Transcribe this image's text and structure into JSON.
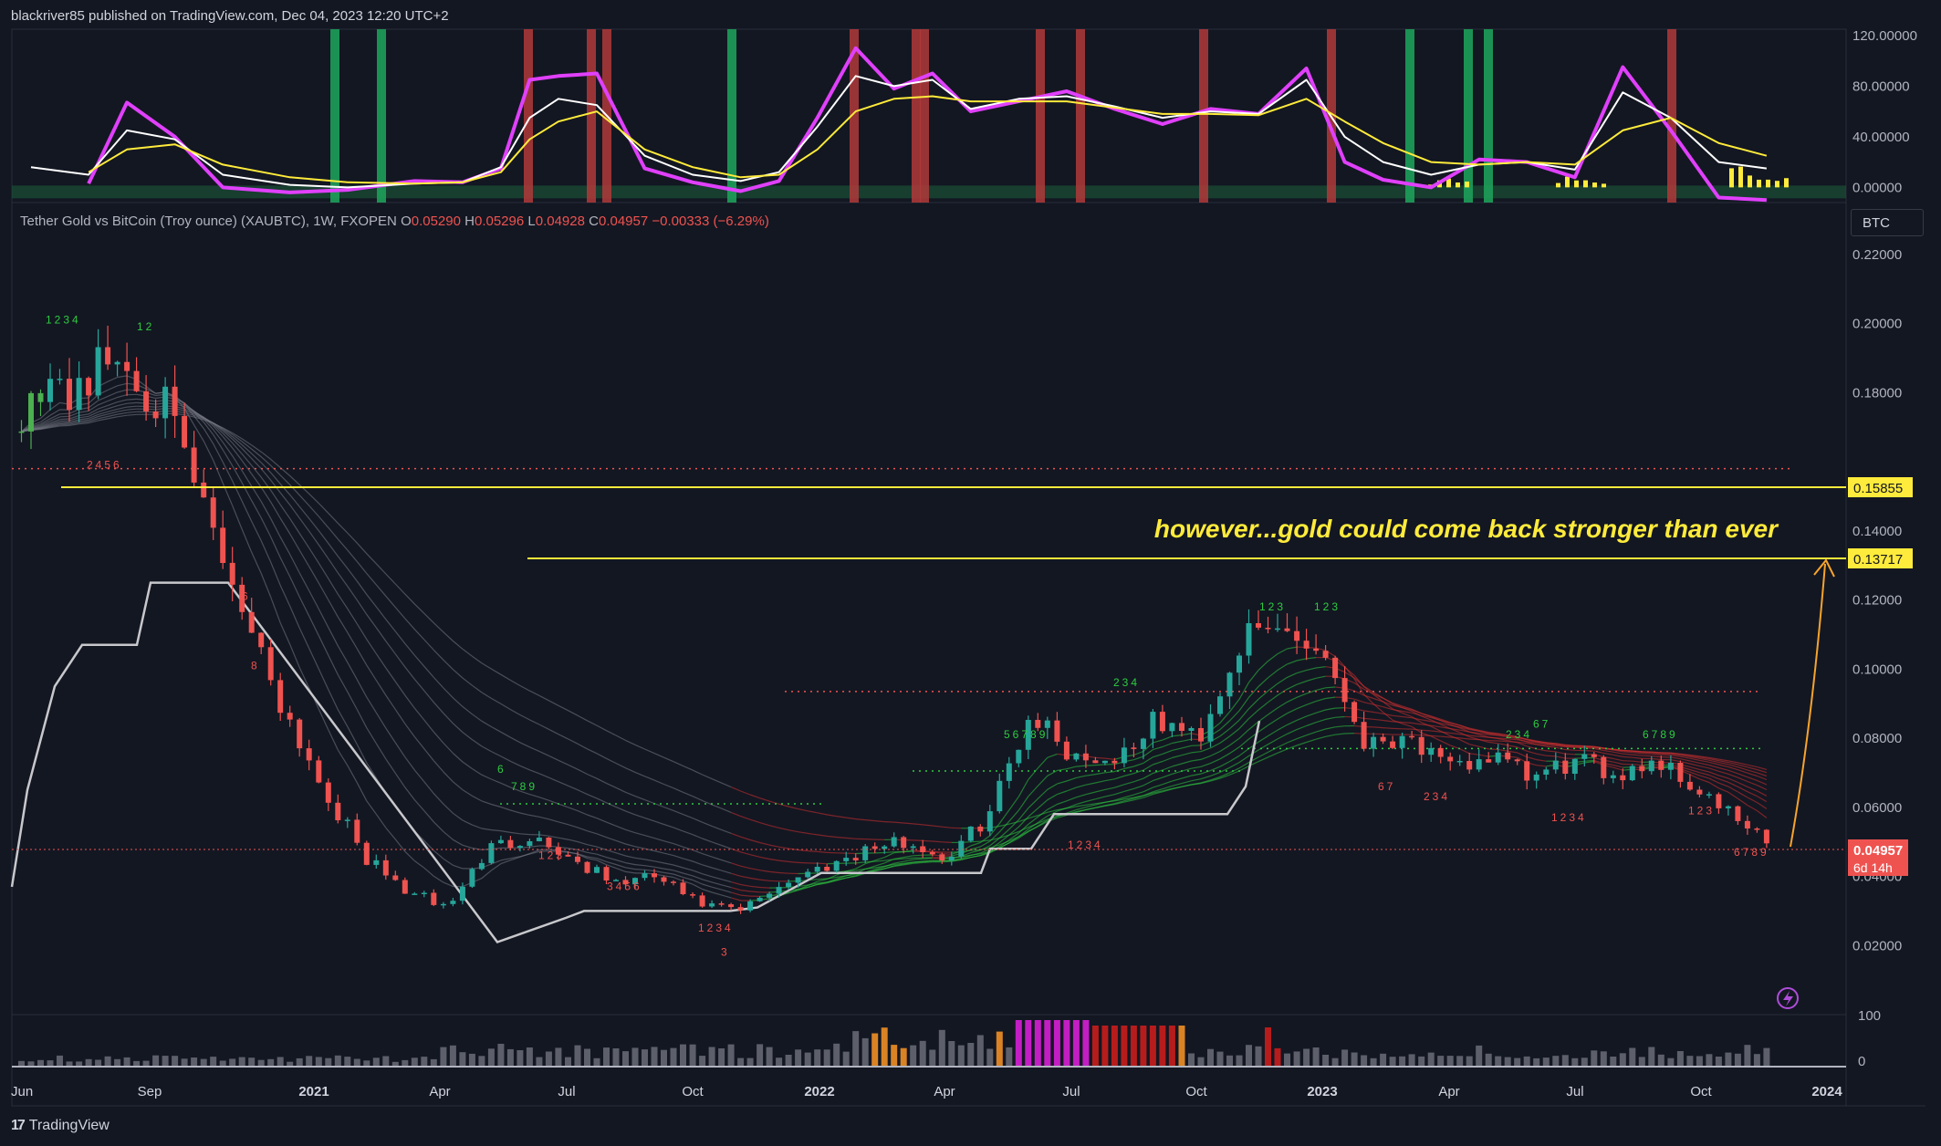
{
  "header": {
    "published_by": "blackriver85 published on TradingView.com, Dec 04, 2023 12:20 UTC+2"
  },
  "legend": {
    "symbol": "Tether Gold vs BitCoin (Troy ounce) (XAUBTC), 1W, FXOPEN",
    "o_label": "O",
    "o": "0.05290",
    "h_label": "H",
    "h": "0.05296",
    "l_label": "L",
    "l": "0.04928",
    "c_label": "C",
    "c": "0.04957",
    "change": "−0.00333 (−6.29%)"
  },
  "currency": "BTC",
  "annotation": "however...gold could come back stronger than ever",
  "price_labels": {
    "level_high": "0.15855",
    "level_low": "0.13717",
    "last_price": "0.04957",
    "countdown": "6d 14h"
  },
  "footer": {
    "logo_mark": "17",
    "logo_text": "TradingView"
  },
  "colors": {
    "background": "#131722",
    "up": "#26a69a",
    "down": "#ef5350",
    "oscillator_fast": "#e040fb",
    "oscillator_white": "#ffffff",
    "oscillator_yellow": "#ffeb3b",
    "level_line": "#ffeb3b",
    "arrow": "#f7a42c"
  },
  "chart_data": [
    {
      "type": "line",
      "title": "",
      "panel": "oscillator",
      "y_ticks": [
        "120.00000",
        "80.00000",
        "40.00000",
        "0.00000"
      ],
      "ylim": [
        -12,
        125
      ],
      "x": [
        "2020-06-15",
        "2020-07-27",
        "2020-08-24",
        "2020-09-28",
        "2020-11-02",
        "2020-12-21",
        "2021-02-01",
        "2021-03-22",
        "2021-04-26",
        "2021-05-24",
        "2021-06-14",
        "2021-07-05",
        "2021-08-02",
        "2021-09-06",
        "2021-10-11",
        "2021-11-15",
        "2021-12-13",
        "2022-01-10",
        "2022-02-07",
        "2022-03-07",
        "2022-04-04",
        "2022-05-02",
        "2022-06-06",
        "2022-07-11",
        "2022-08-15",
        "2022-09-19",
        "2022-10-24",
        "2022-11-28",
        "2023-01-02",
        "2023-01-30",
        "2023-02-27",
        "2023-04-03",
        "2023-05-08",
        "2023-06-12",
        "2023-07-17",
        "2023-08-21",
        "2023-09-25",
        "2023-10-30",
        "2023-12-04"
      ],
      "series": [
        {
          "values": [
            null,
            3,
            67,
            40,
            0,
            -4,
            -2,
            5,
            4,
            15,
            85,
            88,
            90,
            15,
            4,
            -3,
            5,
            55,
            110,
            78,
            90,
            60,
            68,
            76,
            62,
            50,
            62,
            58,
            94,
            20,
            6,
            0,
            22,
            20,
            8,
            95,
            45,
            -8,
            -10
          ]
        },
        {
          "values": [
            16,
            10,
            45,
            38,
            10,
            2,
            0,
            3,
            4,
            16,
            55,
            70,
            65,
            25,
            10,
            5,
            12,
            48,
            88,
            80,
            85,
            62,
            70,
            72,
            64,
            55,
            60,
            58,
            85,
            40,
            20,
            10,
            18,
            20,
            14,
            75,
            55,
            20,
            15
          ]
        },
        {
          "values": [
            null,
            12,
            30,
            34,
            18,
            8,
            4,
            3,
            4,
            12,
            38,
            52,
            60,
            30,
            16,
            8,
            10,
            30,
            60,
            70,
            72,
            68,
            68,
            68,
            63,
            58,
            58,
            57,
            70,
            52,
            35,
            20,
            18,
            20,
            18,
            45,
            55,
            35,
            25
          ]
        }
      ],
      "histogram_note": "yellow bars near zero",
      "signal_bands": {
        "green_count": 7,
        "red_count": 10
      }
    },
    {
      "type": "line",
      "title": "",
      "panel": "price",
      "subtype": "candlestick",
      "y_ticks": [
        "0.22000",
        "0.20000",
        "0.18000",
        "0.14000",
        "0.12000",
        "0.10000",
        "0.08000",
        "0.06000",
        "0.04000",
        "0.02000"
      ],
      "ylim": [
        0.0,
        0.235
      ],
      "x_ticks": [
        "Jun",
        "Sep",
        "2021",
        "Apr",
        "Jul",
        "Oct",
        "2022",
        "Apr",
        "Jul",
        "Oct",
        "2023",
        "Apr",
        "Jul",
        "Oct",
        "2024"
      ],
      "x": [
        "2020-06",
        "2020-08",
        "2020-09",
        "2020-10",
        "2020-11",
        "2020-12",
        "2021-01",
        "2021-02",
        "2021-03",
        "2021-04",
        "2021-05",
        "2021-06",
        "2021-07",
        "2021-08",
        "2021-09",
        "2021-10",
        "2021-11",
        "2021-12",
        "2022-01",
        "2022-02",
        "2022-03",
        "2022-04",
        "2022-05",
        "2022-06",
        "2022-07",
        "2022-08",
        "2022-09",
        "2022-10",
        "2022-11",
        "2022-12",
        "2023-01",
        "2023-02",
        "2023-03",
        "2023-04",
        "2023-05",
        "2023-06",
        "2023-07",
        "2023-08",
        "2023-09",
        "2023-10",
        "2023-11",
        "2023-12"
      ],
      "values": [
        0.175,
        0.19,
        0.18,
        0.15,
        0.12,
        0.09,
        0.065,
        0.045,
        0.036,
        0.031,
        0.048,
        0.052,
        0.045,
        0.038,
        0.04,
        0.032,
        0.03,
        0.038,
        0.043,
        0.048,
        0.05,
        0.045,
        0.058,
        0.088,
        0.075,
        0.074,
        0.085,
        0.08,
        0.108,
        0.112,
        0.105,
        0.078,
        0.082,
        0.07,
        0.075,
        0.068,
        0.073,
        0.07,
        0.074,
        0.065,
        0.055,
        0.0496
      ],
      "horizontal_levels": [
        0.15855,
        0.13717
      ],
      "last_price": 0.04957
    },
    {
      "type": "bar",
      "title": "",
      "panel": "volume",
      "y_ticks": [
        "100",
        "0"
      ],
      "ylim": [
        0,
        100
      ]
    }
  ]
}
